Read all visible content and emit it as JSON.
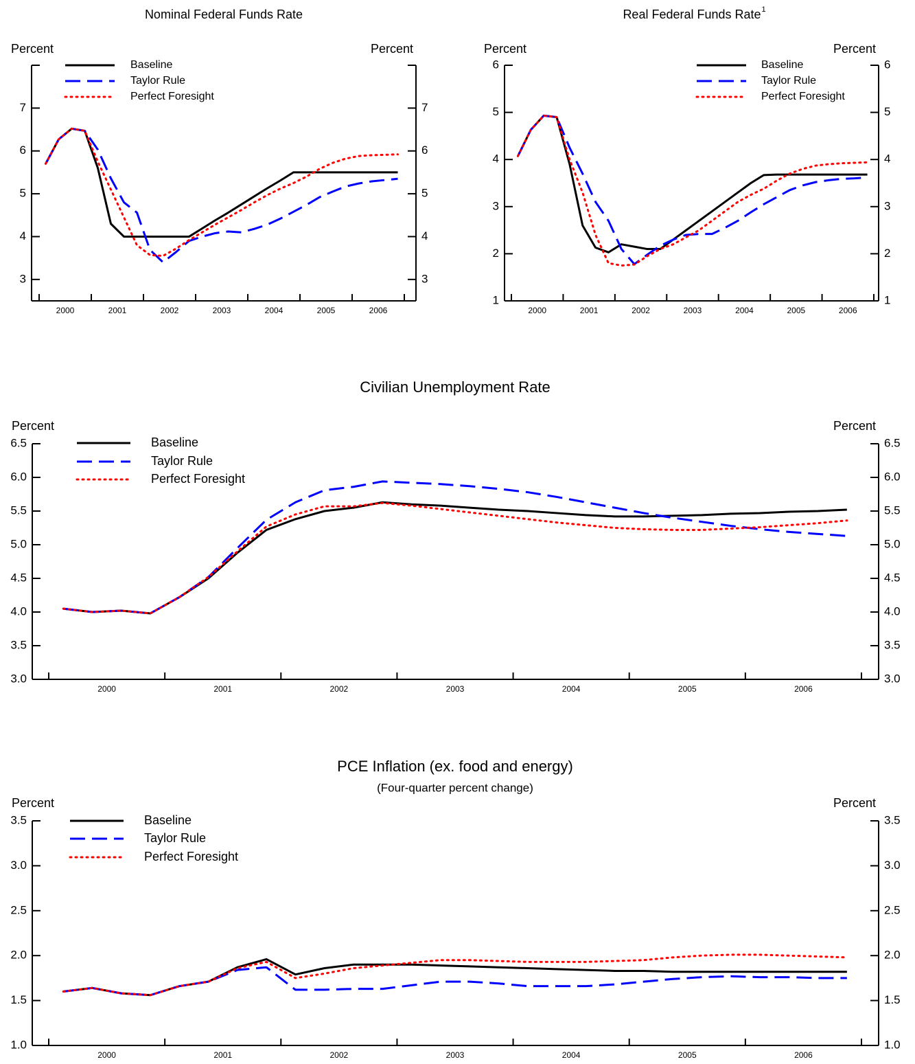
{
  "chart_data": [
    {
      "type": "line",
      "title": "Nominal Federal Funds Rate",
      "ylabel": "Percent",
      "y2label": "Percent",
      "categories": [
        null,
        "2000",
        null,
        null,
        null,
        "2001",
        null,
        null,
        null,
        "2002",
        null,
        null,
        null,
        "2003",
        null,
        null,
        null,
        "2004",
        null,
        null,
        null,
        "2005",
        null,
        null,
        null,
        "2006",
        null,
        null
      ],
      "ylim": [
        2.5,
        8
      ],
      "yticks": [
        3,
        4,
        5,
        6,
        7
      ],
      "series": [
        {
          "name": "Baseline",
          "color": "#000000",
          "style": "solid",
          "values": [
            5.7,
            6.27,
            6.52,
            6.47,
            5.6,
            4.3,
            4,
            4,
            4,
            4,
            4,
            4,
            4.19,
            4.38,
            4.56,
            4.75,
            4.94,
            5.13,
            5.31,
            5.5,
            5.5,
            5.5,
            5.5,
            5.5,
            5.5,
            5.5,
            5.5,
            5.5
          ]
        },
        {
          "name": "Taylor Rule",
          "color": "#0000ff",
          "style": "dashed",
          "values": [
            5.7,
            6.27,
            6.52,
            6.47,
            6.03,
            5.36,
            4.8,
            4.56,
            3.69,
            3.4,
            3.64,
            3.9,
            4.0,
            4.08,
            4.12,
            4.1,
            4.18,
            4.28,
            4.42,
            4.58,
            4.74,
            4.92,
            5.05,
            5.17,
            5.24,
            5.29,
            5.32,
            5.35
          ]
        },
        {
          "name": "Perfect Foresight",
          "color": "#ff0000",
          "style": "dotted",
          "values": [
            5.7,
            6.27,
            6.52,
            6.47,
            5.75,
            5.1,
            4.45,
            3.8,
            3.57,
            3.55,
            3.72,
            3.92,
            4.1,
            4.28,
            4.45,
            4.62,
            4.8,
            4.97,
            5.12,
            5.25,
            5.4,
            5.58,
            5.72,
            5.82,
            5.88,
            5.9,
            5.91,
            5.92
          ]
        }
      ]
    },
    {
      "type": "line",
      "title": "Real Federal Funds Rate",
      "title_superscript": "1",
      "ylabel": "Percent",
      "y2label": "Percent",
      "categories": [
        null,
        "2000",
        null,
        null,
        null,
        "2001",
        null,
        null,
        null,
        "2002",
        null,
        null,
        null,
        "2003",
        null,
        null,
        null,
        "2004",
        null,
        null,
        null,
        "2005",
        null,
        null,
        null,
        "2006",
        null,
        null
      ],
      "ylim": [
        1,
        6
      ],
      "yticks": [
        1,
        2,
        3,
        4,
        5,
        6
      ],
      "series": [
        {
          "name": "Baseline",
          "color": "#000000",
          "style": "solid",
          "values": [
            4.07,
            4.63,
            4.93,
            4.9,
            3.9,
            2.6,
            2.13,
            2.03,
            2.2,
            2.15,
            2.1,
            2.1,
            2.3,
            2.5,
            2.7,
            2.9,
            3.1,
            3.3,
            3.5,
            3.67,
            3.68,
            3.68,
            3.68,
            3.68,
            3.68,
            3.68,
            3.68,
            3.68
          ]
        },
        {
          "name": "Taylor Rule",
          "color": "#0000ff",
          "style": "dashed",
          "values": [
            4.07,
            4.63,
            4.93,
            4.9,
            4.25,
            3.7,
            3.1,
            2.7,
            2.1,
            1.78,
            1.98,
            2.17,
            2.3,
            2.4,
            2.42,
            2.42,
            2.55,
            2.7,
            2.88,
            3.05,
            3.2,
            3.35,
            3.45,
            3.52,
            3.56,
            3.59,
            3.6,
            3.62
          ]
        },
        {
          "name": "Perfect Foresight",
          "color": "#ff0000",
          "style": "dotted",
          "values": [
            4.07,
            4.63,
            4.93,
            4.9,
            4.0,
            3.3,
            2.4,
            1.8,
            1.75,
            1.77,
            1.95,
            2.1,
            2.2,
            2.35,
            2.5,
            2.7,
            2.9,
            3.1,
            3.25,
            3.38,
            3.55,
            3.7,
            3.8,
            3.87,
            3.9,
            3.92,
            3.93,
            3.94
          ]
        }
      ]
    },
    {
      "type": "line",
      "title": "Civilian Unemployment Rate",
      "ylabel": "Percent",
      "y2label": "Percent",
      "categories": [
        null,
        "2000",
        null,
        null,
        null,
        "2001",
        null,
        null,
        null,
        "2002",
        null,
        null,
        null,
        "2003",
        null,
        null,
        null,
        "2004",
        null,
        null,
        null,
        "2005",
        null,
        null,
        null,
        "2006",
        null,
        null
      ],
      "ylim": [
        3,
        6.5
      ],
      "yticks": [
        {
          "value": 3,
          "label": "3.0"
        },
        3.5,
        {
          "value": 4,
          "label": "4.0"
        },
        4.5,
        {
          "value": 5,
          "label": "5.0"
        },
        5.5,
        {
          "value": 6,
          "label": "6.0"
        },
        6.5
      ],
      "series": [
        {
          "name": "Baseline",
          "color": "#000000",
          "style": "solid",
          "values": [
            4.05,
            4.0,
            4.02,
            3.98,
            4.22,
            4.5,
            4.88,
            5.22,
            5.38,
            5.5,
            5.55,
            5.63,
            5.6,
            5.58,
            5.55,
            5.52,
            5.5,
            5.47,
            5.44,
            5.42,
            5.42,
            5.43,
            5.44,
            5.46,
            5.47,
            5.49,
            5.5,
            5.52
          ]
        },
        {
          "name": "Taylor Rule",
          "color": "#0000ff",
          "style": "dashed",
          "values": [
            4.05,
            4.0,
            4.02,
            3.98,
            4.22,
            4.52,
            4.95,
            5.37,
            5.63,
            5.81,
            5.86,
            5.94,
            5.92,
            5.9,
            5.87,
            5.83,
            5.78,
            5.71,
            5.63,
            5.55,
            5.47,
            5.4,
            5.34,
            5.28,
            5.23,
            5.19,
            5.16,
            5.13
          ]
        },
        {
          "name": "Perfect Foresight",
          "color": "#ff0000",
          "style": "dotted",
          "values": [
            4.05,
            4.0,
            4.02,
            3.98,
            4.22,
            4.52,
            4.9,
            5.27,
            5.45,
            5.57,
            5.57,
            5.62,
            5.58,
            5.53,
            5.48,
            5.43,
            5.38,
            5.33,
            5.29,
            5.25,
            5.23,
            5.22,
            5.22,
            5.24,
            5.26,
            5.29,
            5.32,
            5.36
          ]
        }
      ]
    },
    {
      "type": "line",
      "title": "PCE Inflation (ex. food and energy)",
      "subtitle": "(Four-quarter percent change)",
      "ylabel": "Percent",
      "y2label": "Percent",
      "categories": [
        null,
        "2000",
        null,
        null,
        null,
        "2001",
        null,
        null,
        null,
        "2002",
        null,
        null,
        null,
        "2003",
        null,
        null,
        null,
        "2004",
        null,
        null,
        null,
        "2005",
        null,
        null,
        null,
        "2006",
        null,
        null
      ],
      "ylim": [
        1,
        3.5
      ],
      "yticks": [
        {
          "value": 1,
          "label": "1.0"
        },
        1.5,
        {
          "value": 2,
          "label": "2.0"
        },
        2.5,
        {
          "value": 3,
          "label": "3.0"
        },
        3.5
      ],
      "series": [
        {
          "name": "Baseline",
          "color": "#000000",
          "style": "solid",
          "values": [
            1.6,
            1.64,
            1.58,
            1.56,
            1.66,
            1.71,
            1.87,
            1.96,
            1.79,
            1.86,
            1.9,
            1.9,
            1.9,
            1.89,
            1.88,
            1.87,
            1.86,
            1.85,
            1.84,
            1.83,
            1.83,
            1.82,
            1.82,
            1.82,
            1.82,
            1.82,
            1.82,
            1.82
          ]
        },
        {
          "name": "Taylor Rule",
          "color": "#0000ff",
          "style": "dashed",
          "values": [
            1.6,
            1.64,
            1.58,
            1.56,
            1.66,
            1.71,
            1.84,
            1.87,
            1.62,
            1.62,
            1.63,
            1.63,
            1.67,
            1.71,
            1.71,
            1.69,
            1.66,
            1.66,
            1.66,
            1.68,
            1.71,
            1.74,
            1.76,
            1.77,
            1.76,
            1.76,
            1.75,
            1.75
          ]
        },
        {
          "name": "Perfect Foresight",
          "color": "#ff0000",
          "style": "dotted",
          "values": [
            1.6,
            1.64,
            1.58,
            1.56,
            1.66,
            1.71,
            1.86,
            1.93,
            1.75,
            1.8,
            1.86,
            1.89,
            1.92,
            1.95,
            1.95,
            1.94,
            1.93,
            1.93,
            1.93,
            1.94,
            1.95,
            1.98,
            2.0,
            2.01,
            2.01,
            2.0,
            1.99,
            1.98
          ]
        }
      ]
    }
  ]
}
